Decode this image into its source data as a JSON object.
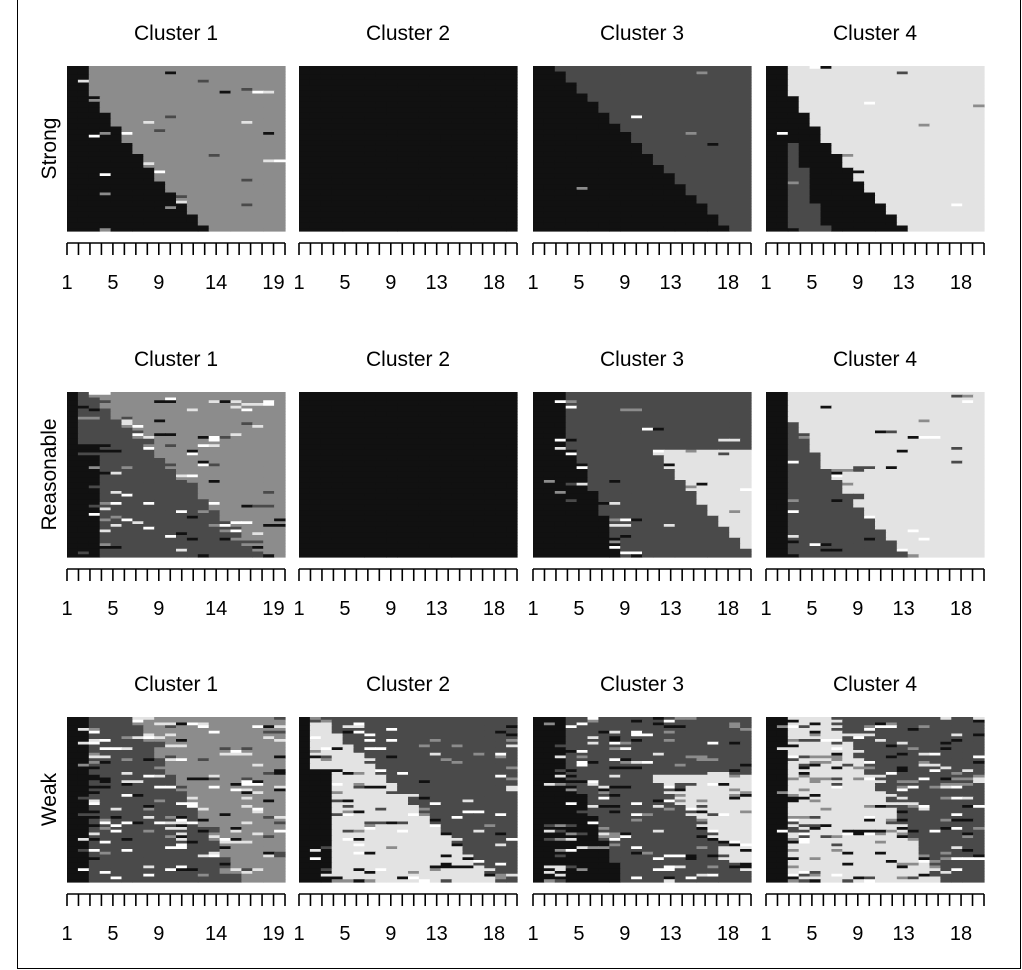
{
  "chart_data": {
    "type": "heatmap",
    "description_kind": "sequence index plots",
    "row_labels": [
      "Strong",
      "Reasonable",
      "Weak"
    ],
    "panel_titles": [
      "Cluster 1",
      "Cluster 2",
      "Cluster 3",
      "Cluster 4"
    ],
    "x": [
      1,
      2,
      3,
      4,
      5,
      6,
      7,
      8,
      9,
      10,
      11,
      12,
      13,
      14,
      15,
      16,
      17,
      18,
      19,
      20
    ],
    "x_tick_labels": {
      "cluster_1": [
        "1",
        "5",
        "9",
        "14",
        "19"
      ],
      "cluster_2": [
        "1",
        "5",
        "9",
        "13",
        "18"
      ],
      "cluster_3": [
        "1",
        "5",
        "9",
        "13",
        "18"
      ],
      "cluster_4": [
        "1",
        "5",
        "9",
        "13",
        "18"
      ]
    },
    "x_tick_positions": {
      "cluster_1": [
        1,
        5,
        9,
        14,
        19
      ],
      "cluster_2": [
        1,
        5,
        9,
        13,
        18
      ],
      "cluster_3": [
        1,
        5,
        9,
        13,
        18
      ],
      "cluster_4": [
        1,
        5,
        9,
        13,
        18
      ]
    },
    "state_colors": [
      "#111111",
      "#4a4a4a",
      "#8c8c8c",
      "#e3e3e3",
      "#ffffff"
    ],
    "panels": [
      {
        "row": "Strong",
        "cluster": "Cluster 1",
        "pattern": "rise",
        "from": 0,
        "to": 2,
        "base": 0,
        "noise": 0.08
      },
      {
        "row": "Strong",
        "cluster": "Cluster 2",
        "pattern": "solid",
        "from": 0,
        "to": 0,
        "base": 0,
        "noise": 0
      },
      {
        "row": "Strong",
        "cluster": "Cluster 3",
        "pattern": "fall",
        "from": 0,
        "to": 1,
        "base": 0,
        "noise": 0.03
      },
      {
        "row": "Strong",
        "cluster": "Cluster 4",
        "pattern": "rise",
        "from": 0,
        "to": 3,
        "base": 1,
        "noise": 0.05
      },
      {
        "row": "Reasonable",
        "cluster": "Cluster 1",
        "pattern": "fall",
        "from": 1,
        "to": 2,
        "base": 0,
        "noise": 0.22
      },
      {
        "row": "Reasonable",
        "cluster": "Cluster 2",
        "pattern": "solid",
        "from": 0,
        "to": 0,
        "base": 0,
        "noise": 0.01
      },
      {
        "row": "Reasonable",
        "cluster": "Cluster 3",
        "pattern": "split",
        "from": 1,
        "to": 3,
        "base": 0,
        "noise": 0.12
      },
      {
        "row": "Reasonable",
        "cluster": "Cluster 4",
        "pattern": "rise",
        "from": 1,
        "to": 3,
        "base": 1,
        "noise": 0.12
      },
      {
        "row": "Weak",
        "cluster": "Cluster 1",
        "pattern": "mix",
        "from": 1,
        "to": 2,
        "base": 0,
        "noise": 0.35
      },
      {
        "row": "Weak",
        "cluster": "Cluster 2",
        "pattern": "fall",
        "from": 3,
        "to": 1,
        "base": 0,
        "noise": 0.3
      },
      {
        "row": "Weak",
        "cluster": "Cluster 3",
        "pattern": "split",
        "from": 1,
        "to": 3,
        "base": 0,
        "noise": 0.35
      },
      {
        "row": "Weak",
        "cluster": "Cluster 4",
        "pattern": "mix",
        "from": 3,
        "to": 1,
        "base": 0,
        "noise": 0.4
      }
    ]
  }
}
